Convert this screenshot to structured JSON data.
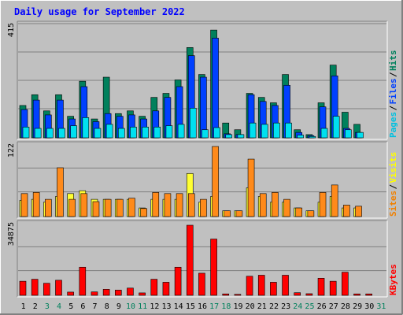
{
  "chart_data": {
    "type": "bar",
    "title": "Daily usage for September 2022",
    "days": [
      "1",
      "2",
      "3",
      "4",
      "5",
      "6",
      "7",
      "8",
      "9",
      "10",
      "11",
      "12",
      "13",
      "14",
      "15",
      "16",
      "17",
      "18",
      "19",
      "20",
      "21",
      "22",
      "23",
      "24",
      "25",
      "26",
      "27",
      "28",
      "29",
      "30",
      "31"
    ],
    "weekend_days": [
      "3",
      "4",
      "10",
      "11",
      "17",
      "18",
      "24",
      "25",
      "31"
    ],
    "panels": [
      {
        "id": "hits-files-pages",
        "ymax": 415,
        "ymax_label": "415",
        "right_labels": [
          {
            "text": "Pages",
            "color": "#00c0e0"
          },
          {
            "text": "Files",
            "color": "#0040ff"
          },
          {
            "text": "Hits",
            "color": "#00805c"
          }
        ],
        "series": [
          {
            "name": "Hits",
            "color": "#00805c",
            "values": [
              120,
              160,
              100,
              160,
              80,
              210,
              70,
              225,
              90,
              100,
              80,
              150,
              165,
              215,
              335,
              235,
              400,
              55,
              30,
              165,
              150,
              130,
              235,
              30,
              12,
              130,
              270,
              95,
              50
            ]
          },
          {
            "name": "Files",
            "color": "#0040ff",
            "values": [
              105,
              140,
              85,
              140,
              70,
              190,
              60,
              90,
              80,
              85,
              70,
              100,
              150,
              190,
              305,
              225,
              370,
              15,
              12,
              160,
              135,
              120,
              195,
              20,
              8,
              115,
              230,
              35,
              20
            ]
          },
          {
            "name": "Pages",
            "color": "#00e0f0",
            "values": [
              40,
              35,
              35,
              35,
              45,
              75,
              35,
              50,
              35,
              40,
              40,
              40,
              45,
              50,
              110,
              30,
              38,
              12,
              12,
              55,
              50,
              55,
              55,
              10,
              5,
              35,
              80,
              30,
              20
            ]
          }
        ]
      },
      {
        "id": "sites-visits",
        "ymax": 122,
        "ymax_label": "122",
        "right_labels": [
          {
            "text": "Sites",
            "color": "#f08000"
          },
          {
            "text": "Visits",
            "color": "#ffff00"
          }
        ],
        "series": [
          {
            "name": "Visits",
            "color": "#ffff33",
            "values": [
              28,
              30,
              25,
              35,
              40,
              45,
              30,
              30,
              30,
              30,
              15,
              30,
              30,
              30,
              75,
              25,
              35,
              10,
              10,
              50,
              35,
              25,
              25,
              15,
              10,
              25,
              35,
              15,
              15
            ]
          },
          {
            "name": "Sites",
            "color": "#ff8a1a",
            "values": [
              40,
              42,
              30,
              85,
              30,
              40,
              26,
              30,
              30,
              32,
              14,
              42,
              40,
              40,
              40,
              30,
              122,
              10,
              10,
              100,
              40,
              42,
              30,
              15,
              10,
              42,
              55,
              20,
              18
            ]
          }
        ]
      },
      {
        "id": "kbytes",
        "ymax": 34875,
        "ymax_label": "34875",
        "right_labels": [
          {
            "text": "KBytes",
            "color": "#ff0000"
          }
        ],
        "series": [
          {
            "name": "KBytes",
            "color": "#ff0000",
            "values": [
              7000,
              8000,
              6000,
              7500,
              1600,
              14000,
              1700,
              3000,
              2600,
              3600,
              1200,
              8000,
              6500,
              14000,
              34875,
              11000,
              28000,
              700,
              500,
              9500,
              10000,
              6500,
              10000,
              1300,
              800,
              8500,
              7000,
              11500,
              700,
              700
            ]
          }
        ]
      }
    ]
  },
  "colors": {
    "background": "#c0c0c0",
    "title": "#0000ff",
    "weekday_label": "#000000",
    "weekend_label": "#00805c"
  }
}
